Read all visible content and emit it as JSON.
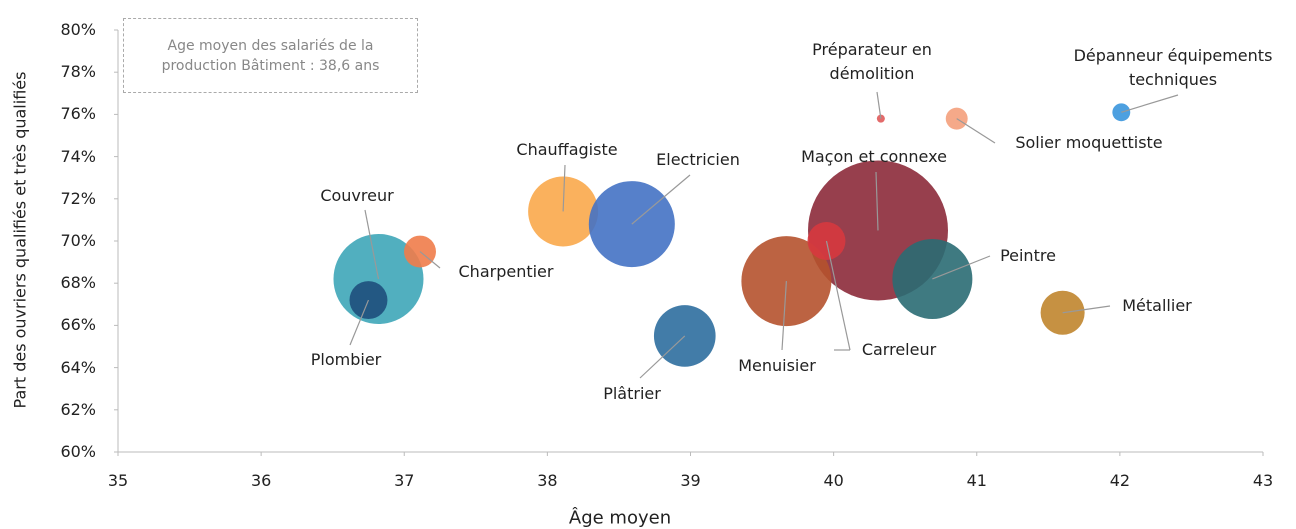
{
  "chart_data": {
    "type": "bubble",
    "xlabel": "Âge moyen",
    "ylabel": "Part des ouvriers qualifiés et très qualifiés",
    "annotation": "Age moyen des salariés de la production Bâtiment : 38,6 ans",
    "xlim": [
      35,
      43
    ],
    "xticks": [
      35,
      36,
      37,
      38,
      39,
      40,
      41,
      42,
      43
    ],
    "ylim": [
      60,
      80
    ],
    "yticks": [
      {
        "value": 60,
        "label": "60%"
      },
      {
        "value": 62,
        "label": "62%"
      },
      {
        "value": 64,
        "label": "64%"
      },
      {
        "value": 66,
        "label": "66%"
      },
      {
        "value": 68,
        "label": "68%"
      },
      {
        "value": 70,
        "label": "70%"
      },
      {
        "value": 72,
        "label": "72%"
      },
      {
        "value": 74,
        "label": "74%"
      },
      {
        "value": 76,
        "label": "76%"
      },
      {
        "value": 78,
        "label": "78%"
      },
      {
        "value": 80,
        "label": "80%"
      }
    ],
    "series": [
      {
        "name": "Couvreur",
        "color": "#3ea6b8",
        "x": [
          36.82
        ],
        "values": [
          68.2
        ],
        "sizes": [
          81
        ]
      },
      {
        "name": "Plombier",
        "color": "#1e4f7c",
        "x": [
          36.75
        ],
        "values": [
          67.2
        ],
        "sizes": [
          14.4
        ]
      },
      {
        "name": "Charpentier",
        "color": "#f07c4a",
        "x": [
          37.11
        ],
        "values": [
          69.5
        ],
        "sizes": [
          10.2
        ]
      },
      {
        "name": "Chauffagiste",
        "color": "#f9a94b",
        "x": [
          38.11
        ],
        "values": [
          71.4
        ],
        "sizes": [
          49
        ]
      },
      {
        "name": "Electricien",
        "color": "#4472c4",
        "x": [
          38.59
        ],
        "values": [
          70.8
        ],
        "sizes": [
          74
        ]
      },
      {
        "name": "Plâtrier",
        "color": "#2e6e9e",
        "x": [
          38.96
        ],
        "values": [
          65.5
        ],
        "sizes": [
          38
        ]
      },
      {
        "name": "Maçon et connexe",
        "color": "#8c2a3a",
        "x": [
          40.31
        ],
        "values": [
          70.5
        ],
        "sizes": [
          196
        ]
      },
      {
        "name": "Menuisier",
        "color": "#b5522e",
        "x": [
          39.67
        ],
        "values": [
          68.1
        ],
        "sizes": [
          81
        ]
      },
      {
        "name": "Carreleur",
        "color": "#d6393f",
        "x": [
          39.95
        ],
        "values": [
          70.0
        ],
        "sizes": [
          14.4
        ]
      },
      {
        "name": "Peintre",
        "color": "#2a6b73",
        "x": [
          40.69
        ],
        "values": [
          68.2
        ],
        "sizes": [
          64
        ]
      },
      {
        "name": "Métallier",
        "color": "#c0852e",
        "x": [
          41.6
        ],
        "values": [
          66.6
        ],
        "sizes": [
          19.4
        ]
      },
      {
        "name": "Préparateur en démolition",
        "color": "#e05a5a",
        "x": [
          40.33
        ],
        "values": [
          75.8
        ],
        "sizes": [
          0.64
        ]
      },
      {
        "name": "Solier moquettiste",
        "color": "#f4a07c",
        "x": [
          40.86
        ],
        "values": [
          75.8
        ],
        "sizes": [
          4.8
        ]
      },
      {
        "name": "Dépanneur équipements techniques",
        "color": "#3a96dd",
        "x": [
          42.01
        ],
        "values": [
          76.1
        ],
        "sizes": [
          3.2
        ]
      }
    ]
  }
}
